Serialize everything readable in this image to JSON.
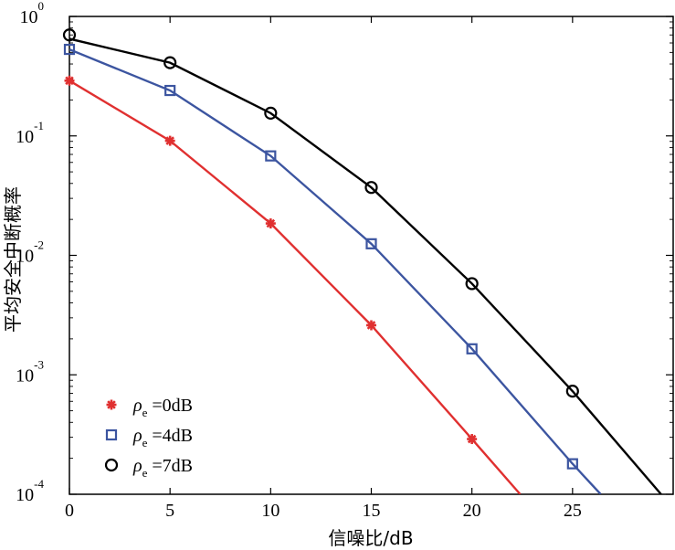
{
  "chart_data": {
    "type": "line",
    "x": [
      0,
      5,
      10,
      15,
      20,
      25
    ],
    "xlabel": "信噪比/dB",
    "ylabel": "平均安全中断概率",
    "xlim": [
      0,
      30
    ],
    "ylim": [
      0.0001,
      1
    ],
    "yscale": "log",
    "xticks": [
      "0",
      "5",
      "10",
      "15",
      "20",
      "25"
    ],
    "yticks": [
      {
        "base": "10",
        "exp": "-4"
      },
      {
        "base": "10",
        "exp": "-3"
      },
      {
        "base": "10",
        "exp": "-2"
      },
      {
        "base": "10",
        "exp": "-1"
      },
      {
        "base": "10",
        "exp": "0"
      }
    ],
    "grid": false,
    "legend_position": "bottom-left",
    "series": [
      {
        "name": "ρe =0dB",
        "symbol": "ρ",
        "sub": "e",
        "rest": " =0dB",
        "color": "#e03030",
        "marker": "asterisk",
        "line": [
          [
            0,
            0.29
          ],
          [
            5,
            0.091
          ],
          [
            10,
            0.0185
          ],
          [
            15,
            0.0026
          ],
          [
            20,
            0.00029
          ],
          [
            22.4,
            0.0001
          ]
        ],
        "markers": [
          [
            0,
            0.29
          ],
          [
            5,
            0.091
          ],
          [
            10,
            0.0185
          ],
          [
            15,
            0.0026
          ],
          [
            20,
            0.00029
          ]
        ]
      },
      {
        "name": "ρe =4dB",
        "symbol": "ρ",
        "sub": "e",
        "rest": " =4dB",
        "color": "#3c55a0",
        "marker": "square",
        "line": [
          [
            0,
            0.53
          ],
          [
            5,
            0.24
          ],
          [
            10,
            0.068
          ],
          [
            15,
            0.0125
          ],
          [
            20,
            0.00165
          ],
          [
            25,
            0.00018
          ],
          [
            26.4,
            0.0001
          ]
        ],
        "markers": [
          [
            0,
            0.53
          ],
          [
            5,
            0.24
          ],
          [
            10,
            0.068
          ],
          [
            15,
            0.0125
          ],
          [
            20,
            0.00165
          ],
          [
            25,
            0.00018
          ]
        ]
      },
      {
        "name": "ρe =7dB",
        "symbol": "ρ",
        "sub": "e",
        "rest": " =7dB",
        "color": "#000000",
        "marker": "circle",
        "line": [
          [
            0,
            0.65
          ],
          [
            5,
            0.41
          ],
          [
            10,
            0.155
          ],
          [
            15,
            0.037
          ],
          [
            20,
            0.0058
          ],
          [
            25,
            0.00073
          ],
          [
            29.4,
            0.0001
          ]
        ],
        "markers": [
          [
            0,
            0.7
          ],
          [
            5,
            0.41
          ],
          [
            10,
            0.155
          ],
          [
            15,
            0.037
          ],
          [
            20,
            0.0058
          ],
          [
            25,
            0.00073
          ]
        ]
      }
    ]
  }
}
